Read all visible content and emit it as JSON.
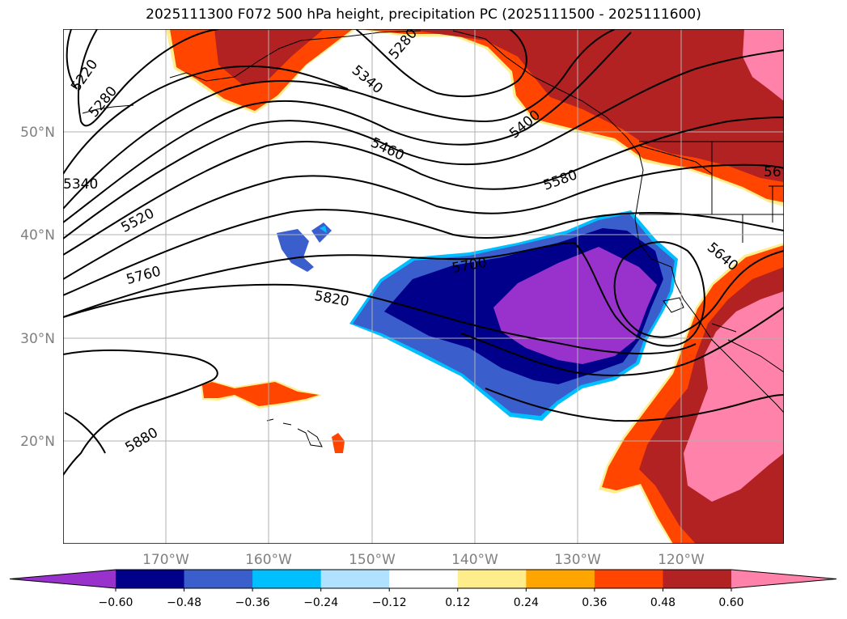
{
  "title": "2025111300 F072 500 hPa height, precipitation PC (2025111500 - 2025111600)",
  "lat_labels": [
    "50°N",
    "40°N",
    "30°N",
    "20°N"
  ],
  "lon_labels": [
    "170°W",
    "160°W",
    "150°W",
    "140°W",
    "130°W",
    "120°W"
  ],
  "contour_labels": [
    "5220",
    "5280",
    "5340",
    "5280",
    "5340",
    "5400",
    "5460",
    "5580",
    "5520",
    "5760",
    "5700",
    "5820",
    "5640",
    "5880",
    "56"
  ],
  "colorbar": {
    "colors": [
      "#9932cc",
      "#00008b",
      "#3a5fcd",
      "#00bfff",
      "#b0e2ff",
      "#ffffff",
      "#ffec8b",
      "#ffa500",
      "#ff4500",
      "#b22222",
      "#ff82ab"
    ],
    "labels": [
      "−0.60",
      "−0.48",
      "−0.36",
      "−0.24",
      "−0.12",
      "0.12",
      "0.24",
      "0.36",
      "0.48",
      "0.60"
    ]
  }
}
